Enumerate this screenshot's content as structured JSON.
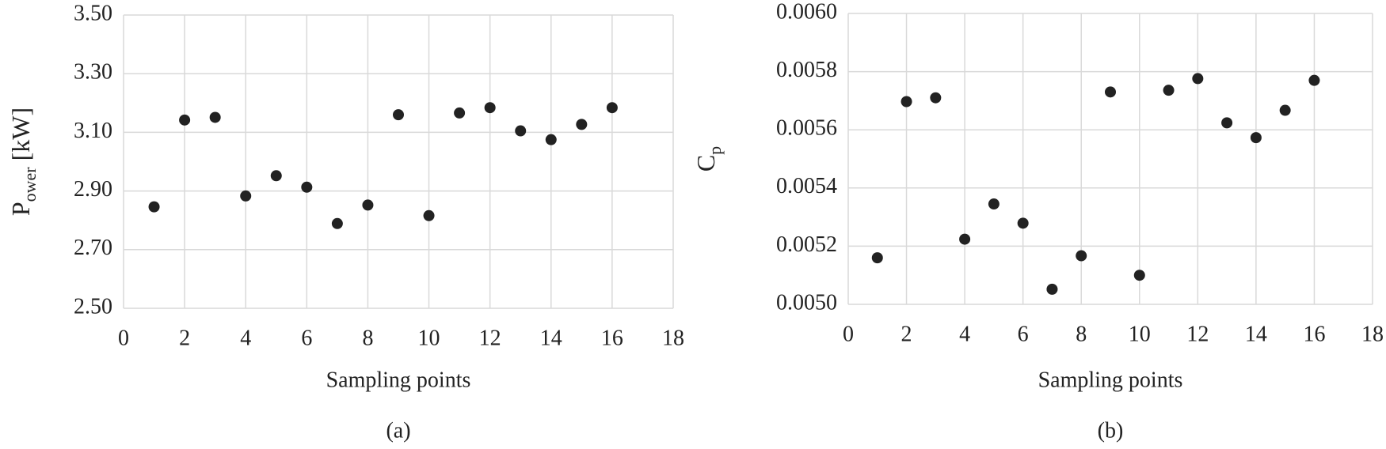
{
  "chart_data": [
    {
      "type": "scatter",
      "caption": "(a)",
      "xlabel": "Sampling points",
      "ylabel": {
        "base": "P",
        "subscript": "ower",
        "suffix": " [kW]"
      },
      "x": [
        1,
        2,
        3,
        4,
        5,
        6,
        7,
        8,
        9,
        10,
        11,
        12,
        13,
        14,
        15,
        16
      ],
      "series": [
        {
          "color": "#222222",
          "values": [
            2.846,
            3.142,
            3.151,
            2.883,
            2.952,
            2.913,
            2.789,
            2.852,
            3.16,
            2.816,
            3.166,
            3.184,
            3.105,
            3.075,
            3.127,
            3.184
          ]
        }
      ],
      "xlim": [
        0,
        18
      ],
      "xticks": [
        0,
        2,
        4,
        6,
        8,
        10,
        12,
        14,
        16,
        18
      ],
      "ylim": [
        2.5,
        3.5
      ],
      "yticks": [
        {
          "value": 2.5,
          "label": "2.50"
        },
        {
          "value": 2.7,
          "label": "2.70"
        },
        {
          "value": 2.9,
          "label": "2.90"
        },
        {
          "value": 3.1,
          "label": "3.10"
        },
        {
          "value": 3.3,
          "label": "3.30"
        },
        {
          "value": 3.5,
          "label": "3.50"
        }
      ],
      "grid": true
    },
    {
      "type": "scatter",
      "caption": "(b)",
      "xlabel": "Sampling points",
      "ylabel": {
        "base": "C",
        "subscript": "p"
      },
      "x": [
        1,
        2,
        3,
        4,
        5,
        6,
        7,
        8,
        9,
        10,
        11,
        12,
        13,
        14,
        15,
        16
      ],
      "series": [
        {
          "color": "#222222",
          "values": [
            0.00516,
            0.005697,
            0.00571,
            0.005224,
            0.005345,
            0.005279,
            0.005052,
            0.005167,
            0.00573,
            0.0051,
            0.005736,
            0.005776,
            0.005624,
            0.005573,
            0.005667,
            0.00577
          ]
        }
      ],
      "xlim": [
        0,
        18
      ],
      "xticks": [
        0,
        2,
        4,
        6,
        8,
        10,
        12,
        14,
        16,
        18
      ],
      "ylim": [
        0.005,
        0.006
      ],
      "yticks": [
        {
          "value": 0.005,
          "label": "0.0050"
        },
        {
          "value": 0.0052,
          "label": "0.0052"
        },
        {
          "value": 0.0054,
          "label": "0.0054"
        },
        {
          "value": 0.0056,
          "label": "0.0056"
        },
        {
          "value": 0.0058,
          "label": "0.0058"
        },
        {
          "value": 0.006,
          "label": "0.0060"
        }
      ],
      "grid": true
    }
  ]
}
